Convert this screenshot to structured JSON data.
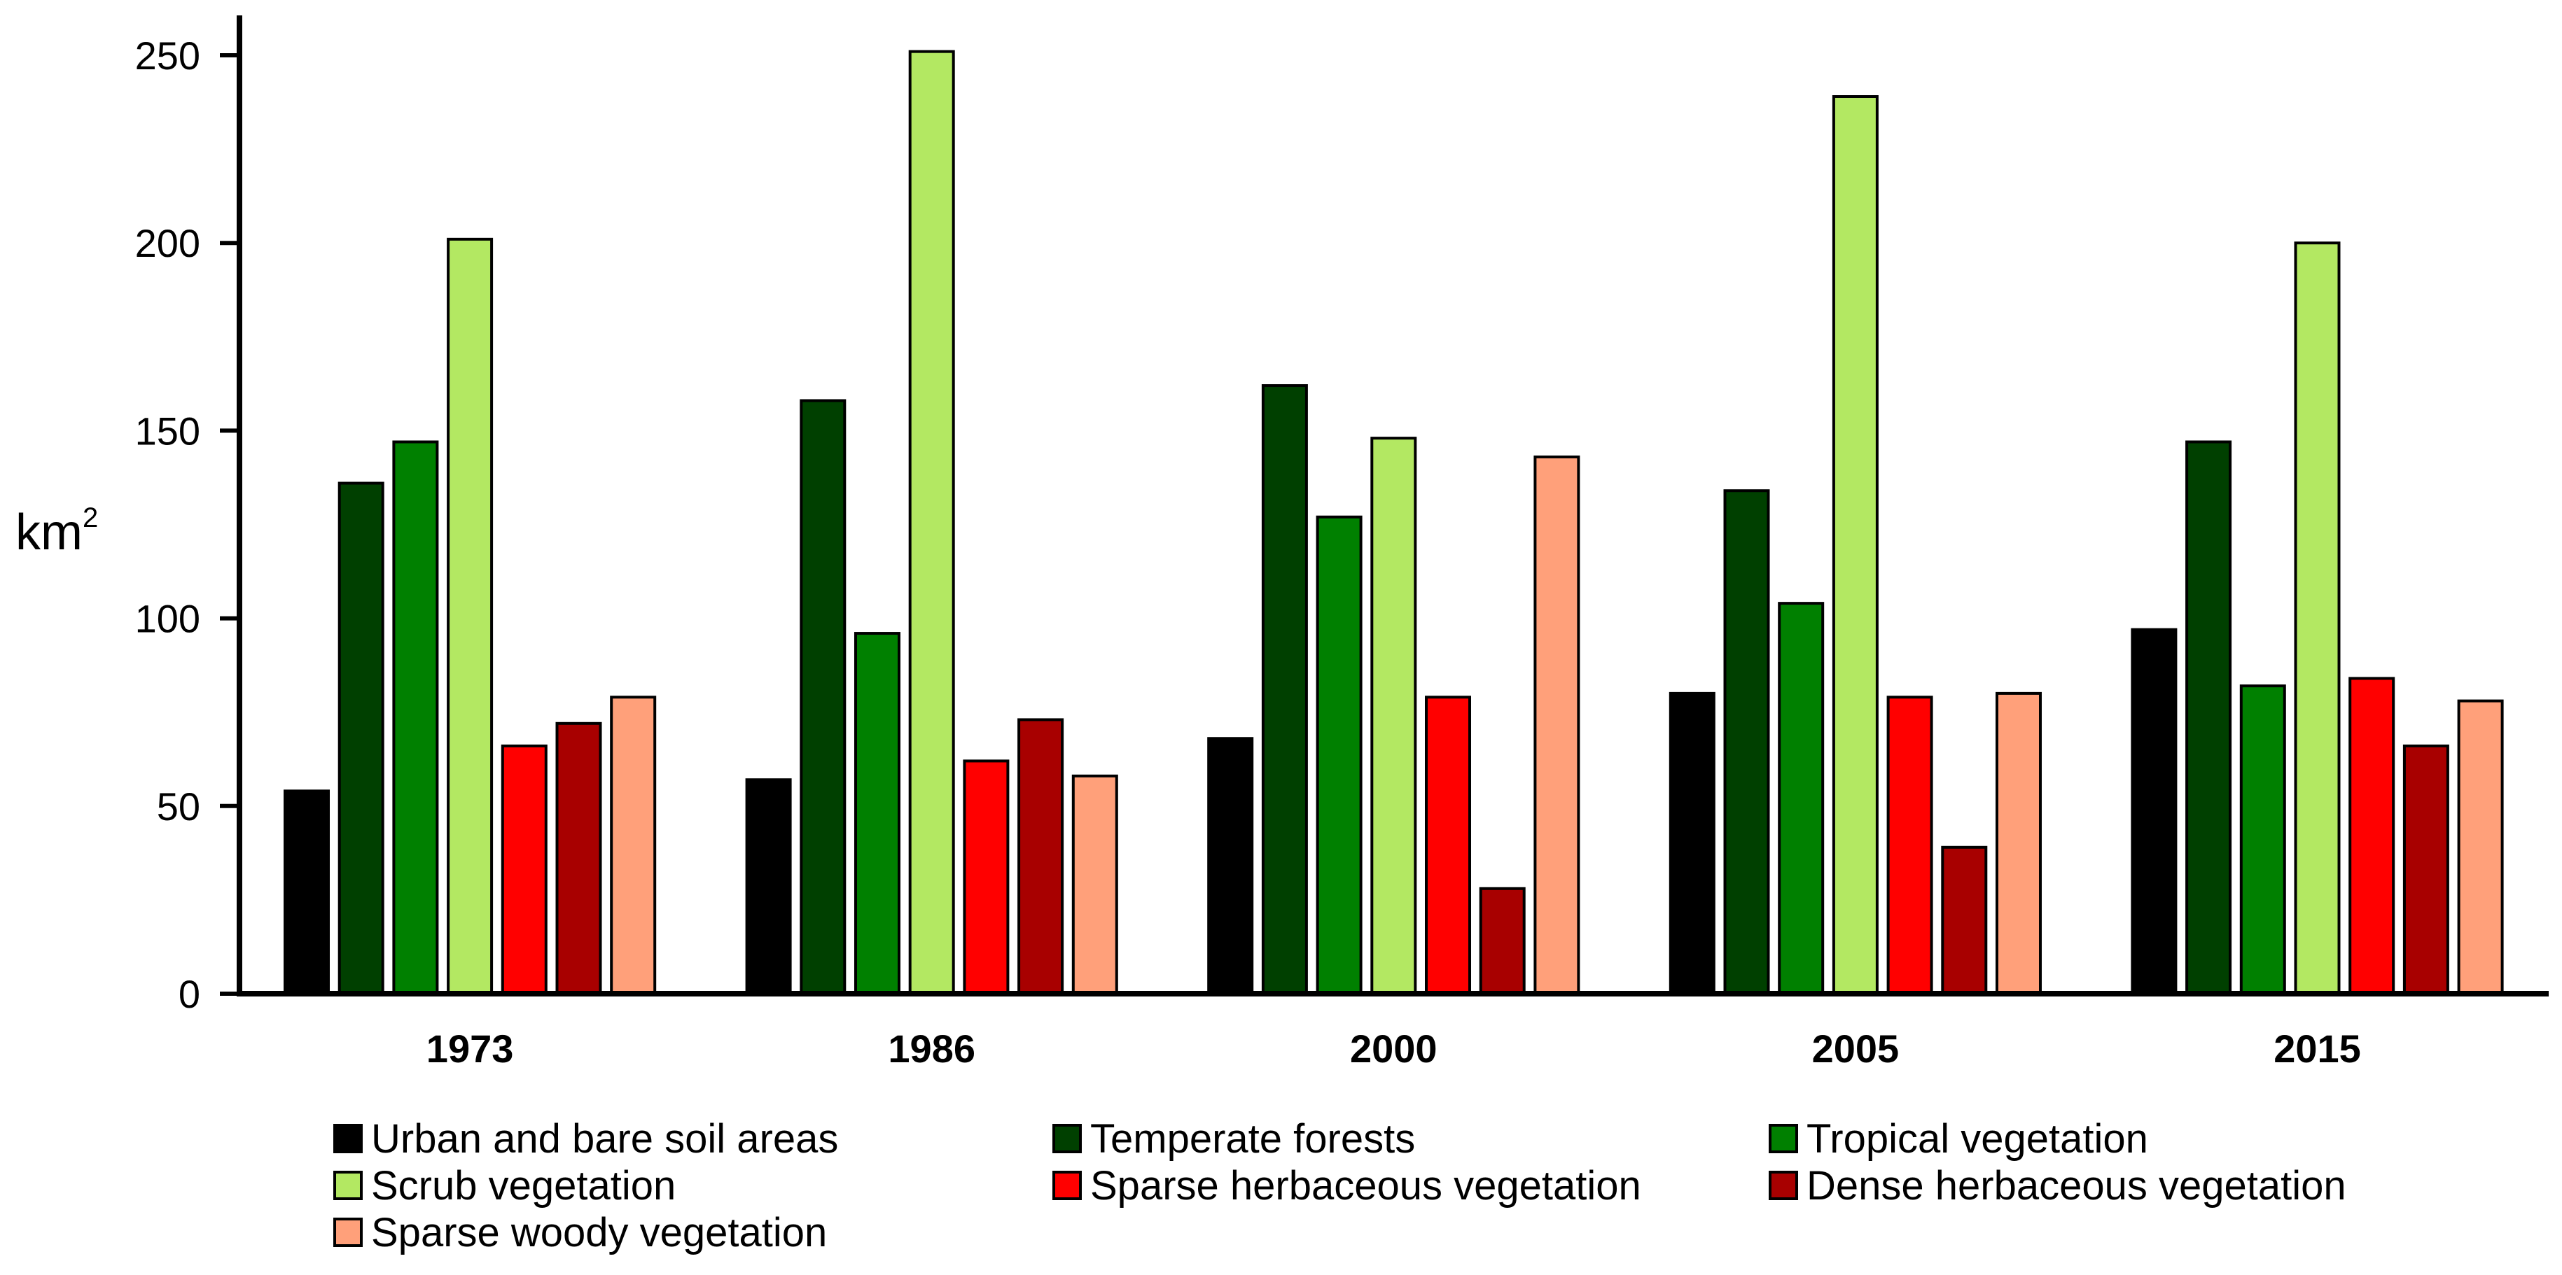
{
  "chart_data": {
    "type": "bar",
    "title": "",
    "xlabel": "",
    "ylabel": "km",
    "ylabel_superscript": "2",
    "ylim": [
      0,
      250
    ],
    "yticks": [
      "0",
      "50",
      "100",
      "150",
      "200",
      "250"
    ],
    "categories": [
      "1973",
      "1986",
      "2000",
      "2005",
      "2015"
    ],
    "legend_position": "bottom",
    "series": [
      {
        "name": "Urban and bare soil areas",
        "color": "#000000",
        "values": [
          54,
          57,
          68,
          80,
          97
        ]
      },
      {
        "name": "Temperate forests",
        "color": "#004000",
        "values": [
          136,
          158,
          162,
          134,
          147
        ]
      },
      {
        "name": "Tropical vegetation",
        "color": "#008000",
        "values": [
          147,
          96,
          127,
          104,
          82
        ]
      },
      {
        "name": "Scrub vegetation",
        "color": "#b3e862",
        "values": [
          201,
          251,
          148,
          239,
          200
        ]
      },
      {
        "name": "Sparse herbaceous vegetation",
        "color": "#ff0000",
        "values": [
          66,
          62,
          79,
          79,
          84
        ]
      },
      {
        "name": "Dense herbaceous vegetation",
        "color": "#a80000",
        "values": [
          72,
          73,
          28,
          39,
          66
        ]
      },
      {
        "name": "Sparse woody vegetation",
        "color": "#ffa07a",
        "values": [
          79,
          58,
          143,
          80,
          78
        ]
      }
    ]
  }
}
